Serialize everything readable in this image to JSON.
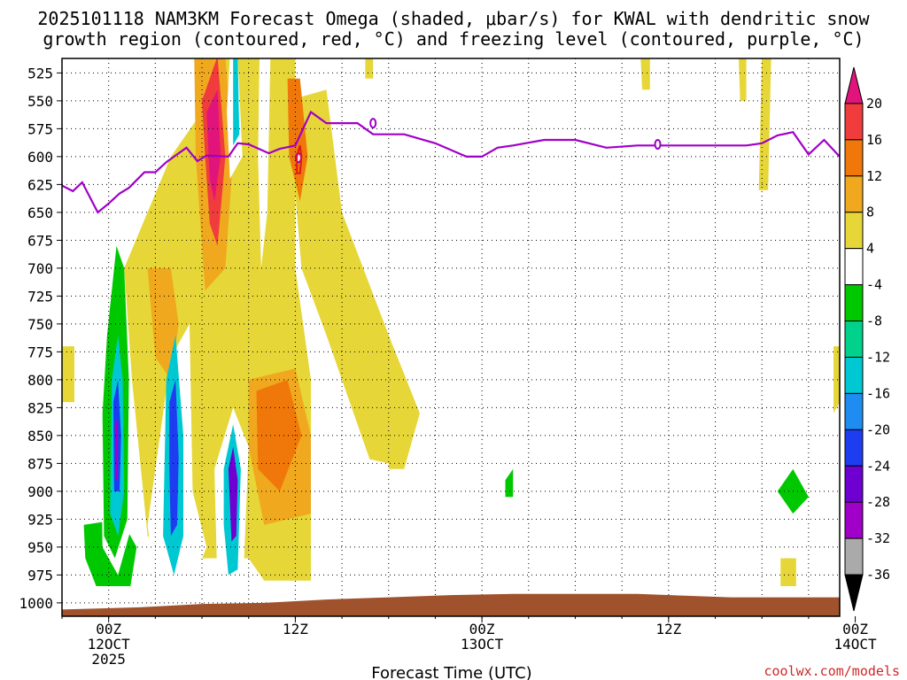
{
  "chart_data": {
    "type": "heatmap",
    "title": [
      "2025101118 NAM3KM Forecast Omega (shaded, μbar/s) for KWAL with dendritic snow",
      "growth region (contoured, red, °C) and freezing level (contoured, purple, °C)"
    ],
    "xlabel": "Forecast Time (UTC)",
    "xlim": [
      -3,
      47
    ],
    "ylim": [
      1012,
      512
    ],
    "y_ticks": [
      525,
      550,
      575,
      600,
      625,
      650,
      675,
      700,
      725,
      750,
      775,
      800,
      825,
      850,
      875,
      900,
      925,
      950,
      975,
      1000
    ],
    "x_ticks": [
      {
        "hour": 0,
        "lines": [
          "00Z",
          "12OCT",
          "2025"
        ]
      },
      {
        "hour": 12,
        "lines": [
          "12Z"
        ]
      },
      {
        "hour": 24,
        "lines": [
          "00Z",
          "13OCT"
        ]
      },
      {
        "hour": 36,
        "lines": [
          "12Z"
        ]
      },
      {
        "hour": 48,
        "lines": [
          "00Z",
          "14OCT"
        ]
      }
    ],
    "colorbar": {
      "labels": [
        20,
        16,
        12,
        8,
        4,
        -4,
        -8,
        -12,
        -16,
        -20,
        -24,
        -28,
        -32,
        -36
      ],
      "colors": [
        "#e0147a",
        "#f03c3c",
        "#f0780a",
        "#f0a81e",
        "#e6d638",
        "#ffffff",
        "#00c800",
        "#00d28c",
        "#00c8d2",
        "#1e8cf0",
        "#1e3cf0",
        "#6e00d2",
        "#a000c8",
        "#aaaaaa",
        "#000000"
      ]
    },
    "freezing_level": {
      "color": "#a000c8",
      "hours": [
        -3,
        -2.3,
        -1.7,
        -0.7,
        0,
        0.7,
        1.3,
        2.3,
        3,
        3.7,
        4.3,
        5,
        5.7,
        6.3,
        7.7,
        8.3,
        9,
        10.3,
        11,
        12,
        13,
        14,
        15,
        16,
        17,
        19,
        21,
        23,
        24,
        25,
        26,
        28,
        30,
        32,
        34,
        36,
        38,
        40,
        41,
        42,
        43,
        44,
        45,
        46,
        47
      ],
      "hpa": [
        626,
        631,
        623,
        650,
        642,
        633,
        628,
        614,
        614,
        605,
        599,
        592,
        604,
        599,
        600,
        588,
        589,
        597,
        593,
        590,
        560,
        570,
        570,
        570,
        580,
        580,
        588,
        600,
        600,
        592,
        590,
        585,
        585,
        592,
        590,
        590,
        590,
        590,
        590,
        588,
        581,
        578,
        598,
        585,
        600
      ]
    },
    "omega_regions": [
      {
        "v": 4,
        "pts": [
          [
            -3,
            770
          ],
          [
            -2.2,
            770
          ],
          [
            -2.2,
            820
          ],
          [
            -3,
            820
          ]
        ]
      },
      {
        "v": -4,
        "pts": [
          [
            -1.5,
            930
          ],
          [
            1,
            925
          ],
          [
            2,
            950
          ],
          [
            1.5,
            990
          ],
          [
            -1,
            990
          ],
          [
            -1.5,
            960
          ]
        ]
      },
      {
        "v": -8,
        "pts": [
          [
            -1.6,
            930
          ],
          [
            0.8,
            925
          ],
          [
            1.8,
            950
          ],
          [
            1.4,
            985
          ],
          [
            -0.8,
            985
          ],
          [
            -1.5,
            960
          ]
        ]
      },
      {
        "v": -4,
        "pts": [
          [
            -0.3,
            740
          ],
          [
            0.4,
            650
          ],
          [
            1.2,
            650
          ],
          [
            1.8,
            760
          ],
          [
            1.6,
            925
          ],
          [
            0.6,
            975
          ],
          [
            -0.4,
            950
          ],
          [
            -0.5,
            825
          ]
        ]
      },
      {
        "v": -8,
        "pts": [
          [
            -0.1,
            760
          ],
          [
            0.5,
            680
          ],
          [
            1.0,
            700
          ],
          [
            1.3,
            800
          ],
          [
            1.2,
            925
          ],
          [
            0.4,
            960
          ],
          [
            -0.3,
            940
          ],
          [
            -0.4,
            830
          ]
        ]
      },
      {
        "v": -16,
        "pts": [
          [
            0.2,
            800
          ],
          [
            0.6,
            760
          ],
          [
            0.9,
            800
          ],
          [
            1.0,
            900
          ],
          [
            0.6,
            940
          ],
          [
            0.1,
            920
          ]
        ]
      },
      {
        "v": -24,
        "pts": [
          [
            0.3,
            820
          ],
          [
            0.6,
            800
          ],
          [
            0.8,
            850
          ],
          [
            0.7,
            900
          ],
          [
            0.35,
            900
          ]
        ]
      },
      {
        "v": -32,
        "pts": [
          [
            0.4,
            840
          ],
          [
            0.6,
            835
          ],
          [
            0.6,
            890
          ],
          [
            0.45,
            890
          ]
        ]
      },
      {
        "v": 4,
        "pts": [
          [
            1.0,
            700
          ],
          [
            4,
            600
          ],
          [
            6,
            560
          ],
          [
            7,
            510
          ],
          [
            12,
            510
          ],
          [
            12,
            700
          ],
          [
            13,
            800
          ],
          [
            13,
            980
          ],
          [
            10,
            980
          ],
          [
            9,
            960
          ],
          [
            4,
            960
          ],
          [
            2.5,
            940
          ],
          [
            1.5,
            800
          ]
        ]
      },
      {
        "v": 8,
        "pts": [
          [
            2.5,
            700
          ],
          [
            4,
            700
          ],
          [
            4.5,
            750
          ],
          [
            4,
            800
          ],
          [
            3,
            780
          ]
        ]
      },
      {
        "v": 8,
        "pts": [
          [
            5.5,
            510
          ],
          [
            7.5,
            510
          ],
          [
            8,
            600
          ],
          [
            7.5,
            700
          ],
          [
            6.2,
            720
          ],
          [
            5.6,
            600
          ]
        ]
      },
      {
        "v": 16,
        "pts": [
          [
            6,
            550
          ],
          [
            7,
            510
          ],
          [
            7.5,
            600
          ],
          [
            7,
            680
          ],
          [
            6.5,
            660
          ],
          [
            6.2,
            600
          ]
        ]
      },
      {
        "v": 20,
        "pts": [
          [
            6.3,
            560
          ],
          [
            7,
            540
          ],
          [
            7.2,
            600
          ],
          [
            6.8,
            640
          ],
          [
            6.5,
            620
          ]
        ]
      },
      {
        "v": 8,
        "pts": [
          [
            9,
            800
          ],
          [
            12,
            790
          ],
          [
            13,
            850
          ],
          [
            13,
            920
          ],
          [
            10,
            930
          ],
          [
            9,
            860
          ]
        ]
      },
      {
        "v": 12,
        "pts": [
          [
            9.5,
            810
          ],
          [
            11.5,
            800
          ],
          [
            12.4,
            850
          ],
          [
            11,
            900
          ],
          [
            9.6,
            880
          ]
        ]
      },
      {
        "v": -4,
        "pts": [
          [
            2.5,
            930
          ],
          [
            4,
            780
          ],
          [
            5.2,
            750
          ],
          [
            5.4,
            900
          ],
          [
            6.3,
            950
          ],
          [
            5,
            995
          ],
          [
            3,
            990
          ]
        ]
      },
      {
        "v": -16,
        "pts": [
          [
            3.7,
            800
          ],
          [
            4.3,
            760
          ],
          [
            4.8,
            850
          ],
          [
            4.8,
            940
          ],
          [
            4.2,
            975
          ],
          [
            3.5,
            940
          ]
        ]
      },
      {
        "v": -24,
        "pts": [
          [
            3.9,
            820
          ],
          [
            4.3,
            800
          ],
          [
            4.5,
            870
          ],
          [
            4.4,
            930
          ],
          [
            4,
            940
          ],
          [
            3.9,
            880
          ]
        ]
      },
      {
        "v": -4,
        "pts": [
          [
            6.8,
            880
          ],
          [
            8,
            825
          ],
          [
            9,
            860
          ],
          [
            8.6,
            1000
          ],
          [
            7,
            990
          ]
        ]
      },
      {
        "v": -16,
        "pts": [
          [
            7.4,
            880
          ],
          [
            8,
            840
          ],
          [
            8.5,
            880
          ],
          [
            8.3,
            970
          ],
          [
            7.7,
            975
          ],
          [
            7.4,
            930
          ]
        ]
      },
      {
        "v": -28,
        "pts": [
          [
            7.7,
            880
          ],
          [
            8,
            860
          ],
          [
            8.3,
            890
          ],
          [
            8.2,
            940
          ],
          [
            7.9,
            945
          ]
        ]
      },
      {
        "v": -4,
        "pts": [
          [
            7.8,
            510
          ],
          [
            8.3,
            510
          ],
          [
            8.6,
            600
          ],
          [
            7.8,
            620
          ],
          [
            7.6,
            560
          ]
        ]
      },
      {
        "v": -16,
        "pts": [
          [
            8,
            510
          ],
          [
            8.3,
            510
          ],
          [
            8.4,
            580
          ],
          [
            8,
            590
          ]
        ]
      },
      {
        "v": -4,
        "pts": [
          [
            9.7,
            510
          ],
          [
            10.4,
            510
          ],
          [
            10.2,
            650
          ],
          [
            9.8,
            700
          ],
          [
            9.6,
            600
          ]
        ]
      },
      {
        "v": -4,
        "pts": [
          [
            13,
            605
          ],
          [
            14,
            590
          ],
          [
            16,
            660
          ],
          [
            16.4,
            760
          ],
          [
            15.8,
            800
          ],
          [
            15.6,
            900
          ],
          [
            14.8,
            900
          ],
          [
            14.8,
            800
          ],
          [
            14.2,
            740
          ],
          [
            13.3,
            700
          ]
        ]
      },
      {
        "v": 4,
        "pts": [
          [
            11.5,
            550
          ],
          [
            14,
            540
          ],
          [
            15,
            650
          ],
          [
            18,
            760
          ],
          [
            20,
            830
          ],
          [
            19,
            880
          ],
          [
            17,
            880
          ],
          [
            14,
            760
          ],
          [
            12.4,
            700
          ]
        ]
      },
      {
        "v": 12,
        "pts": [
          [
            11.5,
            530
          ],
          [
            12.3,
            530
          ],
          [
            12.8,
            600
          ],
          [
            12.3,
            640
          ],
          [
            11.6,
            600
          ]
        ]
      },
      {
        "v": -4,
        "pts": [
          [
            21.5,
            610
          ],
          [
            22.2,
            640
          ],
          [
            22,
            740
          ],
          [
            21.6,
            760
          ],
          [
            21.4,
            700
          ]
        ]
      },
      {
        "v": -4,
        "pts": [
          [
            14.8,
            950
          ],
          [
            15.8,
            945
          ],
          [
            16,
            1000
          ],
          [
            15.2,
            1000
          ]
        ]
      },
      {
        "v": -4,
        "pts": [
          [
            16.4,
            870
          ],
          [
            18,
            875
          ],
          [
            18,
            930
          ],
          [
            16.4,
            930
          ]
        ]
      },
      {
        "v": -4,
        "pts": [
          [
            23.5,
            890
          ],
          [
            25,
            850
          ],
          [
            27,
            870
          ],
          [
            28.6,
            900
          ],
          [
            29,
            960
          ],
          [
            26,
            985
          ],
          [
            24,
            975
          ]
        ]
      },
      {
        "v": -8,
        "pts": [
          [
            25.5,
            890
          ],
          [
            26,
            880
          ],
          [
            26,
            905
          ],
          [
            25.5,
            905
          ]
        ]
      },
      {
        "v": -4,
        "pts": [
          [
            35.3,
            925
          ],
          [
            36.4,
            910
          ],
          [
            36.2,
            960
          ],
          [
            35.2,
            960
          ]
        ]
      },
      {
        "v": -4,
        "pts": [
          [
            41,
            900
          ],
          [
            43,
            825
          ],
          [
            44.5,
            770
          ],
          [
            45,
            850
          ],
          [
            46,
            900
          ],
          [
            47,
            930
          ],
          [
            47,
            950
          ],
          [
            44,
            950
          ],
          [
            41,
            950
          ]
        ]
      },
      {
        "v": -8,
        "pts": [
          [
            43,
            900
          ],
          [
            44,
            880
          ],
          [
            45,
            905
          ],
          [
            44,
            920
          ]
        ]
      },
      {
        "v": 4,
        "pts": [
          [
            46.6,
            770
          ],
          [
            47,
            770
          ],
          [
            47,
            820
          ],
          [
            46.6,
            830
          ]
        ]
      },
      {
        "v": 4,
        "pts": [
          [
            42,
            510
          ],
          [
            42.6,
            510
          ],
          [
            42.4,
            630
          ],
          [
            41.8,
            630
          ]
        ]
      },
      {
        "v": 4,
        "pts": [
          [
            40.5,
            510
          ],
          [
            41,
            510
          ],
          [
            41,
            550
          ],
          [
            40.6,
            550
          ]
        ]
      },
      {
        "v": 4,
        "pts": [
          [
            34.2,
            510
          ],
          [
            34.8,
            510
          ],
          [
            34.8,
            540
          ],
          [
            34.3,
            540
          ]
        ]
      },
      {
        "v": 4,
        "pts": [
          [
            43.2,
            960
          ],
          [
            44.2,
            960
          ],
          [
            44.2,
            985
          ],
          [
            43.2,
            985
          ]
        ]
      },
      {
        "v": -4,
        "pts": [
          [
            23.8,
            510
          ],
          [
            24.2,
            510
          ],
          [
            24.2,
            540
          ],
          [
            23.8,
            540
          ]
        ]
      },
      {
        "v": 4,
        "pts": [
          [
            16.5,
            510
          ],
          [
            17,
            510
          ],
          [
            17,
            530
          ],
          [
            16.5,
            530
          ]
        ]
      }
    ],
    "dgz_region": {
      "color": "#e01818",
      "pts": [
        [
          12.1,
          600
        ],
        [
          12.3,
          590
        ],
        [
          12.4,
          600
        ],
        [
          12.3,
          615
        ],
        [
          12.1,
          615
        ]
      ]
    },
    "terrain": {
      "color": "#a0522d",
      "hours": [
        -3,
        2,
        6,
        10,
        14,
        18,
        22,
        26,
        34,
        40,
        47
      ],
      "hpa": [
        1006,
        1004,
        1001,
        1000,
        997,
        995,
        993,
        992,
        992,
        995,
        995
      ]
    },
    "credit": "coolwx.com/models"
  }
}
